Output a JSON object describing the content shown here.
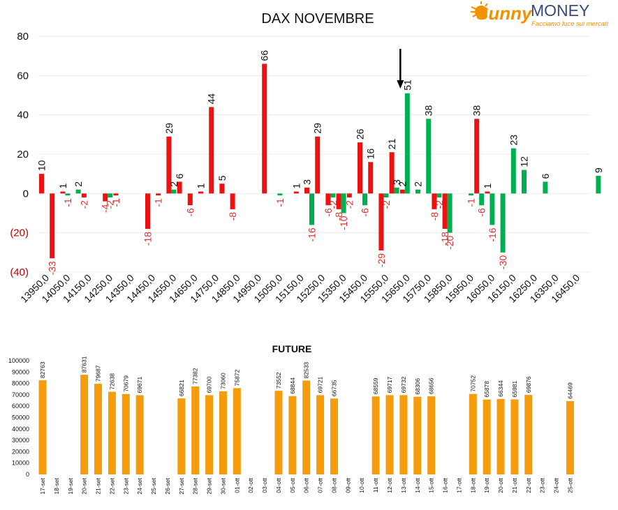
{
  "logo": {
    "word1": "Sunny",
    "word2": "MONEY",
    "tagline": "Facciamo luce sui mercati"
  },
  "colors": {
    "red": "#ee1111",
    "green": "#00b050",
    "orange": "#f59c0c",
    "neg_label": "#e03030",
    "text": "#111111",
    "logo_orange": "#f39200",
    "logo_blue": "#3b4a7a"
  },
  "chart_data": [
    {
      "type": "bar",
      "title": "DAX NOVEMBRE",
      "ylim": [
        -40,
        80
      ],
      "ytick_labels": [
        "80",
        "60",
        "40",
        "20",
        "0",
        "(20)",
        "(40)"
      ],
      "grid": true,
      "categories": [
        "13950,0",
        "14050,0",
        "14150,0",
        "14250,0",
        "14350,0",
        "14450,0",
        "14550,0",
        "14650,0",
        "14750,0",
        "14850,0",
        "14950,0",
        "15050,0",
        "15150,0",
        "15250,0",
        "15350,0",
        "15450,0",
        "15550,0",
        "15650,0",
        "15750,0",
        "15850,0",
        "15950,0",
        "16050,0",
        "16150,0",
        "16250,0",
        "16350,0",
        "16450,0"
      ],
      "series": [
        {
          "color": "red",
          "bars": [
            {
              "x": 13950,
              "value": 10
            },
            {
              "x": 14000,
              "value": -33
            },
            {
              "x": 14050,
              "value": 1
            },
            {
              "x": 14150,
              "value": -2
            },
            {
              "x": 14250,
              "value": -4
            },
            {
              "x": 14300,
              "value": -1
            },
            {
              "x": 14450,
              "value": -18
            },
            {
              "x": 14500,
              "value": -1
            },
            {
              "x": 14550,
              "value": 29
            },
            {
              "x": 14600,
              "value": 6
            },
            {
              "x": 14650,
              "value": -6
            },
            {
              "x": 14700,
              "value": 1
            },
            {
              "x": 14750,
              "value": 44
            },
            {
              "x": 14800,
              "value": 5
            },
            {
              "x": 14850,
              "value": -8
            },
            {
              "x": 15000,
              "value": 66
            },
            {
              "x": 15150,
              "value": 1
            },
            {
              "x": 15200,
              "value": 3
            },
            {
              "x": 15250,
              "value": 29
            },
            {
              "x": 15300,
              "value": -6
            },
            {
              "x": 15350,
              "value": -8
            },
            {
              "x": 15400,
              "value": -2
            },
            {
              "x": 15450,
              "value": 26
            },
            {
              "x": 15500,
              "value": 16
            },
            {
              "x": 15550,
              "value": -29
            },
            {
              "x": 15600,
              "value": 21
            },
            {
              "x": 15650,
              "value": 2
            },
            {
              "x": 15800,
              "value": -8
            },
            {
              "x": 15850,
              "value": -18
            },
            {
              "x": 16000,
              "value": 38
            },
            {
              "x": 16050,
              "value": 1
            }
          ]
        },
        {
          "color": "green",
          "bars": [
            {
              "x": 14050,
              "value": -1
            },
            {
              "x": 14100,
              "value": 2
            },
            {
              "x": 14250,
              "value": -2
            },
            {
              "x": 14550,
              "value": 2
            },
            {
              "x": 15050,
              "value": -1
            },
            {
              "x": 15200,
              "value": -16
            },
            {
              "x": 15300,
              "value": -2
            },
            {
              "x": 15350,
              "value": -10
            },
            {
              "x": 15450,
              "value": -6
            },
            {
              "x": 15550,
              "value": -2
            },
            {
              "x": 15600,
              "value": 3
            },
            {
              "x": 15650,
              "value": 51
            },
            {
              "x": 15700,
              "value": 2
            },
            {
              "x": 15750,
              "value": 38
            },
            {
              "x": 15800,
              "value": -2
            },
            {
              "x": 15850,
              "value": -20
            },
            {
              "x": 15950,
              "value": -1
            },
            {
              "x": 16000,
              "value": -6
            },
            {
              "x": 16050,
              "value": -16
            },
            {
              "x": 16100,
              "value": -30
            },
            {
              "x": 16150,
              "value": 23
            },
            {
              "x": 16200,
              "value": 12
            },
            {
              "x": 16300,
              "value": 6
            },
            {
              "x": 16550,
              "value": 9
            }
          ]
        }
      ],
      "annotation": {
        "type": "arrow",
        "x": 15650
      }
    },
    {
      "type": "bar",
      "title": "FUTURE",
      "ylim": [
        0,
        100000
      ],
      "ytick_labels": [
        "100000",
        "90000",
        "80000",
        "70000",
        "60000",
        "50000",
        "40000",
        "30000",
        "20000",
        "10000",
        "0"
      ],
      "categories": [
        "17-set",
        "18-set",
        "19-set",
        "20-set",
        "21-set",
        "22-set",
        "23-set",
        "24-set",
        "25-set",
        "26-set",
        "27-set",
        "28-set",
        "29-set",
        "30-set",
        "01-ott",
        "02-ott",
        "03-ott",
        "04-ott",
        "05-ott",
        "06-ott",
        "07-ott",
        "08-ott",
        "09-ott",
        "10-ott",
        "11-ott",
        "12-ott",
        "13-ott",
        "14-ott",
        "15-ott",
        "16-ott",
        "17-ott",
        "18-ott",
        "19-ott",
        "20-ott",
        "21-ott",
        "22-ott",
        "23-ott",
        "24-ott",
        "25-ott"
      ],
      "values": [
        82763,
        null,
        null,
        87631,
        79687,
        72638,
        70679,
        69671,
        null,
        null,
        66821,
        77382,
        69700,
        73060,
        75872,
        null,
        null,
        73552,
        68844,
        82533,
        69721,
        66735,
        null,
        null,
        68559,
        69717,
        69732,
        68306,
        68656,
        null,
        null,
        70752,
        65878,
        66344,
        65981,
        69876,
        null,
        null,
        64469
      ],
      "color": "orange"
    }
  ]
}
